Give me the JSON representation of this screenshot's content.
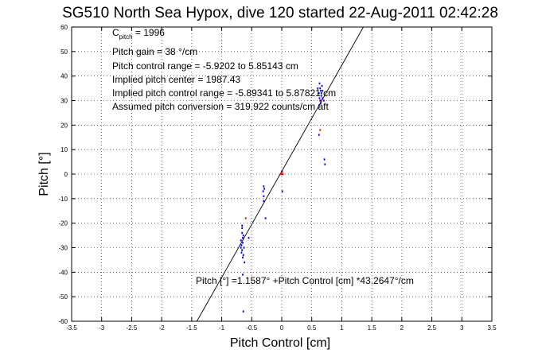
{
  "chart_data": {
    "type": "scatter",
    "title": "SG510 North Sea Hypox, dive 120 started 22-Aug-2011 02:42:28",
    "xlabel": "Pitch Control [cm]",
    "ylabel": "Pitch [°]",
    "xlim": [
      -3.5,
      3.5
    ],
    "ylim": [
      -60,
      60
    ],
    "x_ticks": [
      "-3.5",
      "-3",
      "-2.5",
      "-2",
      "-1.5",
      "-1",
      "-0.5",
      "0",
      "0.5",
      "1",
      "1.5",
      "2",
      "2.5",
      "3",
      "3.5"
    ],
    "y_ticks": [
      "-60",
      "-50",
      "-40",
      "-30",
      "-20",
      "-10",
      "0",
      "10",
      "20",
      "30",
      "40",
      "50",
      "60"
    ],
    "grid": true,
    "annotations": {
      "cpitch_prefix": "C",
      "cpitch_sub": "pitch",
      "cpitch_value": " = 1996",
      "gain": "Pitch gain = 38 °/cm",
      "control_range": "Pitch control range = -5.9202 to 5.85143 cm",
      "implied_center": "Implied pitch center = 1987.43",
      "implied_range": "Implied pitch control range = -5.89341 to 5.87821 cm",
      "conversion": "Assumed pitch conversion = 319.922 counts/cm aft",
      "fit_equation": "Pitch [°] =1.1587° +Pitch Control [cm] *43.2647°/cm"
    },
    "fit_line": {
      "intercept": 1.1587,
      "slope": 43.2647
    },
    "series": [
      {
        "color": "#0000ff",
        "points": [
          [
            -0.68,
            -27
          ],
          [
            -0.66,
            -31
          ],
          [
            -0.65,
            -34
          ],
          [
            -0.67,
            -29
          ],
          [
            -0.64,
            -25
          ],
          [
            -0.66,
            -22
          ],
          [
            -0.65,
            -28
          ],
          [
            -0.63,
            -30
          ],
          [
            -0.67,
            -32
          ],
          [
            -0.65,
            -26
          ],
          [
            -0.66,
            -24
          ],
          [
            -0.64,
            -33
          ],
          [
            -0.62,
            -36
          ],
          [
            -0.66,
            -21
          ],
          [
            -0.68,
            -30
          ],
          [
            -0.65,
            -41
          ],
          [
            -0.64,
            -56
          ],
          [
            -0.55,
            -26
          ],
          [
            -0.3,
            -5
          ],
          [
            -0.31,
            -7
          ],
          [
            -0.3,
            -9
          ],
          [
            -0.29,
            -6
          ],
          [
            -0.3,
            -11
          ],
          [
            -0.27,
            -18
          ],
          [
            0.6,
            35
          ],
          [
            0.62,
            33
          ],
          [
            0.63,
            31
          ],
          [
            0.65,
            34
          ],
          [
            0.64,
            30
          ],
          [
            0.66,
            32
          ],
          [
            0.67,
            36
          ],
          [
            0.65,
            29
          ],
          [
            0.68,
            31
          ],
          [
            0.63,
            37
          ],
          [
            0.62,
            28
          ],
          [
            0.66,
            33
          ],
          [
            0.64,
            35
          ],
          [
            0.7,
            30
          ],
          [
            0.68,
            34
          ],
          [
            0.62,
            16
          ],
          [
            0.72,
            4
          ],
          [
            0.71,
            6
          ],
          [
            0.0,
            1
          ],
          [
            0.01,
            -7
          ]
        ]
      },
      {
        "color": "#ff0000",
        "points": [
          [
            0.0,
            0
          ],
          [
            0.01,
            1
          ],
          [
            -0.01,
            0
          ],
          [
            0.02,
            0
          ],
          [
            -0.6,
            -18
          ],
          [
            0.64,
            18
          ],
          [
            0.66,
            30
          ]
        ]
      }
    ]
  }
}
